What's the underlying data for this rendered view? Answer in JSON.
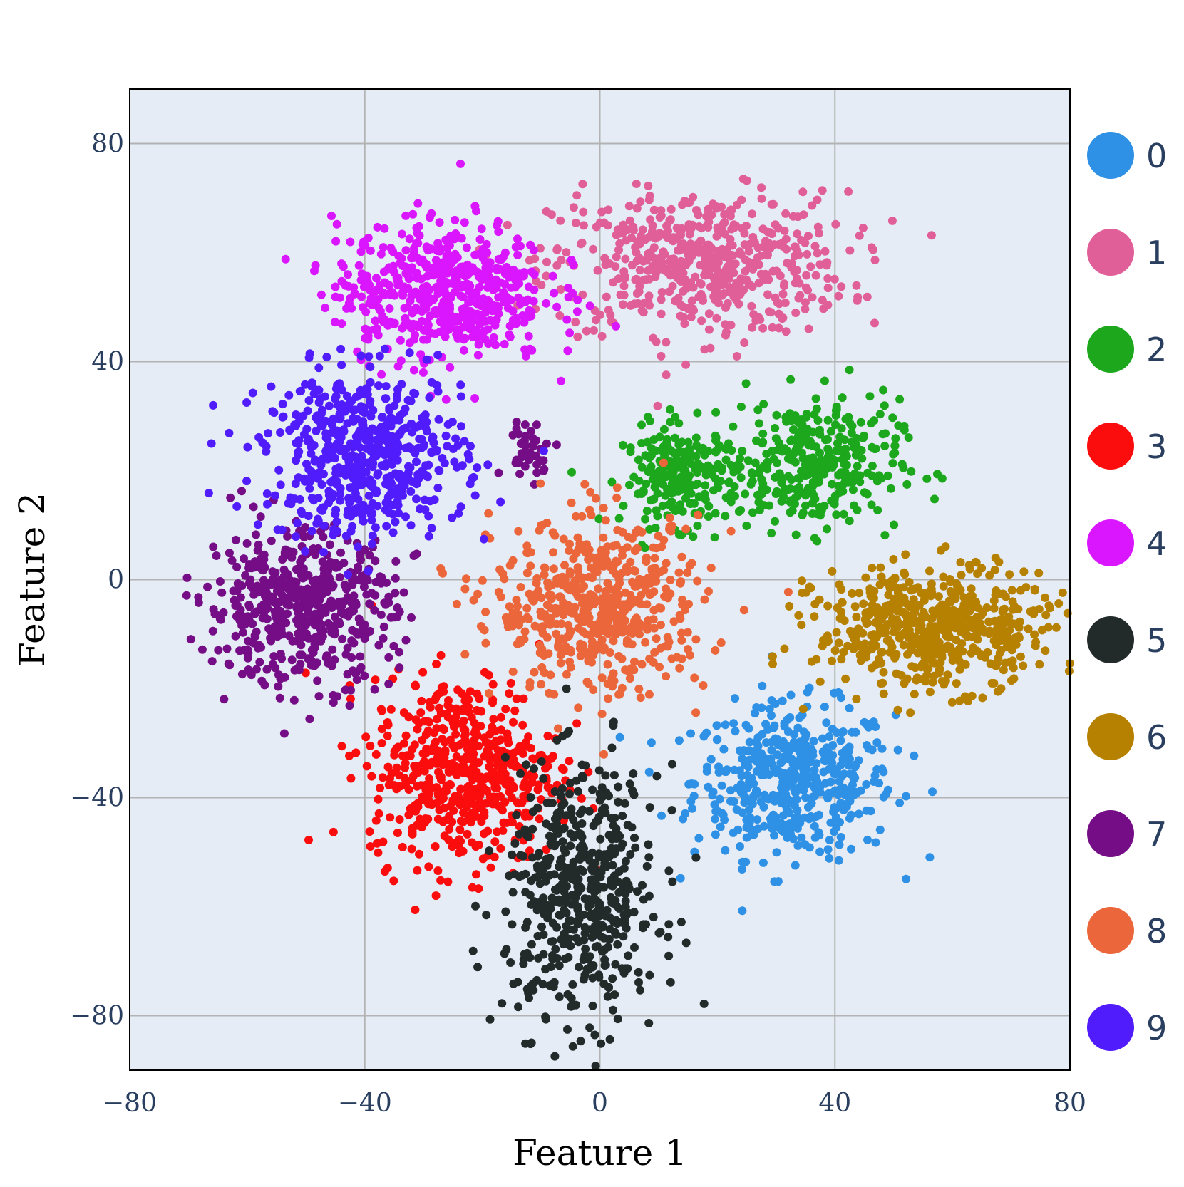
{
  "chart_data": {
    "type": "scatter",
    "title": "",
    "xlabel": "Feature 1",
    "ylabel": "Feature 2",
    "xlim": [
      -80,
      80
    ],
    "ylim": [
      -90,
      90
    ],
    "x_ticks": [
      -80,
      -40,
      0,
      40,
      80
    ],
    "y_ticks": [
      80,
      40,
      0,
      -40,
      -80
    ],
    "x_tick_labels": [
      "−80",
      "−40",
      "0",
      "40",
      "80"
    ],
    "y_tick_labels": [
      "80",
      "40",
      "0",
      "−40",
      "−80"
    ],
    "grid": true,
    "legend_position": "right",
    "plot_background": "#e5ecf6",
    "series": [
      {
        "name": "0",
        "color": "#2e91e5",
        "clusters": [
          {
            "cx": 33,
            "cy": -37,
            "sx": 8.5,
            "sy": 7,
            "n": 480
          }
        ]
      },
      {
        "name": "1",
        "color": "#e15f99",
        "clusters": [
          {
            "cx": 17,
            "cy": 58,
            "sx": 12.5,
            "sy": 6.5,
            "n": 560
          }
        ]
      },
      {
        "name": "2",
        "color": "#1ca71c",
        "clusters": [
          {
            "cx": 14,
            "cy": 19,
            "sx": 5,
            "sy": 4.5,
            "n": 230
          },
          {
            "cx": 36,
            "cy": 21,
            "sx": 7.5,
            "sy": 6,
            "n": 330
          }
        ]
      },
      {
        "name": "3",
        "color": "#fb0d0d",
        "clusters": [
          {
            "cx": -23,
            "cy": -35,
            "sx": 8,
            "sy": 8.5,
            "n": 540
          }
        ]
      },
      {
        "name": "4",
        "color": "#da16ff",
        "clusters": [
          {
            "cx": -27,
            "cy": 53,
            "sx": 9,
            "sy": 6.5,
            "n": 540
          }
        ]
      },
      {
        "name": "5",
        "color": "#222a2a",
        "clusters": [
          {
            "cx": -3,
            "cy": -58,
            "sx": 6.5,
            "sy": 11.5,
            "n": 520
          }
        ]
      },
      {
        "name": "6",
        "color": "#b68100",
        "clusters": [
          {
            "cx": 57,
            "cy": -9,
            "sx": 10,
            "sy": 5.5,
            "n": 560
          }
        ]
      },
      {
        "name": "7",
        "color": "#750d86",
        "clusters": [
          {
            "cx": -51,
            "cy": -5,
            "sx": 8,
            "sy": 7,
            "n": 520
          },
          {
            "cx": -12,
            "cy": 24,
            "sx": 2.2,
            "sy": 2.5,
            "n": 40
          }
        ]
      },
      {
        "name": "8",
        "color": "#eb663b",
        "clusters": [
          {
            "cx": 0,
            "cy": -5,
            "sx": 9,
            "sy": 8,
            "n": 540
          }
        ]
      },
      {
        "name": "9",
        "color": "#511cfb",
        "clusters": [
          {
            "cx": -40,
            "cy": 23,
            "sx": 8.5,
            "sy": 7.5,
            "n": 560
          }
        ]
      }
    ]
  }
}
